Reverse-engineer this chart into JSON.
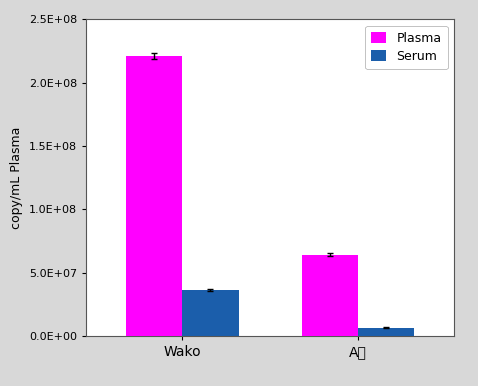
{
  "groups": [
    "Wako",
    "A社"
  ],
  "plasma_values": [
    221000000.0,
    64000000.0
  ],
  "serum_values": [
    36000000.0,
    6500000.0
  ],
  "plasma_errors": [
    2500000.0,
    1200000.0
  ],
  "serum_errors": [
    800000.0,
    250000.0
  ],
  "plasma_color": "#FF00FF",
  "serum_color": "#1B5EAB",
  "ylabel": "copy/mL Plasma",
  "ylim": [
    0,
    250000000.0
  ],
  "yticks": [
    0,
    50000000.0,
    100000000.0,
    150000000.0,
    200000000.0,
    250000000.0
  ],
  "ytick_labels": [
    "0.0E+00",
    "5.0E+07",
    "1.0E+08",
    "1.5E+08",
    "2.0E+08",
    "2.5E+08"
  ],
  "legend_labels": [
    "Plasma",
    "Serum"
  ],
  "bar_width": 0.32,
  "figure_bg": "#d8d8d8",
  "plot_bg": "#ffffff",
  "ylabel_fontsize": 9,
  "tick_fontsize": 8,
  "xtick_fontsize": 10,
  "legend_fontsize": 9
}
